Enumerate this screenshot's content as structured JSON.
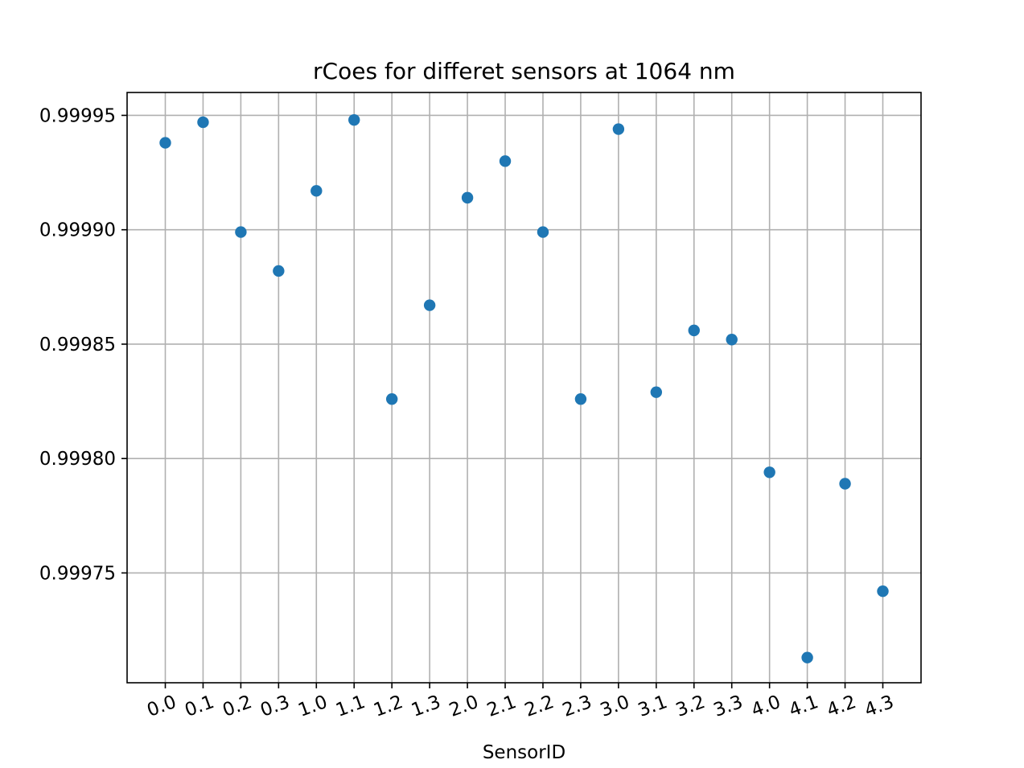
{
  "chart_data": {
    "type": "scatter",
    "title": "rCoes for differet sensors at 1064 nm",
    "xlabel": "SensorID",
    "ylabel": "",
    "categories": [
      "0.0",
      "0.1",
      "0.2",
      "0.3",
      "1.0",
      "1.1",
      "1.2",
      "1.3",
      "2.0",
      "2.1",
      "2.2",
      "2.3",
      "3.0",
      "3.1",
      "3.2",
      "3.3",
      "4.0",
      "4.1",
      "4.2",
      "4.3"
    ],
    "series": [
      {
        "values": [
          0.999938,
          0.999947,
          0.999899,
          0.999882,
          0.999917,
          0.999948,
          0.999826,
          0.999867,
          0.999914,
          0.99993,
          0.999899,
          0.999826,
          0.999944,
          0.999829,
          0.999856,
          0.999852,
          0.999794,
          0.999713,
          0.999789,
          0.999742
        ],
        "color": "#1f77b4"
      }
    ],
    "ylim": [
      0.999702,
      0.99996
    ],
    "yticks": [
      0.99975,
      0.9998,
      0.99985,
      0.9999,
      0.99995
    ],
    "ytick_labels": [
      "0.99975",
      "0.99980",
      "0.99985",
      "0.99990",
      "0.99995"
    ],
    "xtick_rotation_deg": -20,
    "grid": true,
    "legend": false
  }
}
